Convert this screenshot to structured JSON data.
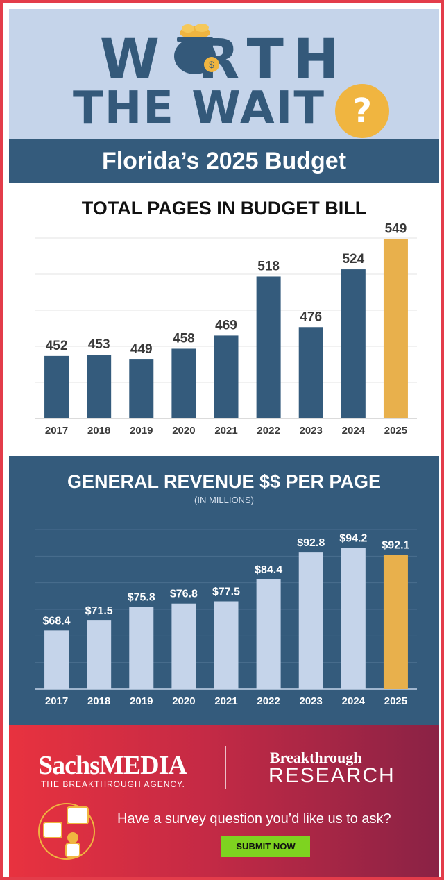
{
  "hero": {
    "line1": "W RTH",
    "line2": "THE WAIT",
    "question_mark": "?",
    "coin_symbol": "$"
  },
  "band": {
    "title": "Florida’s 2025 Budget"
  },
  "colors": {
    "navy": "#345b7c",
    "light_blue": "#c5d4ea",
    "highlight": "#e8b04c",
    "accent_red": "#e33c4a",
    "submit_green": "#7ed320"
  },
  "chart_data": [
    {
      "type": "bar",
      "title": "TOTAL PAGES IN BUDGET BILL",
      "categories": [
        "2017",
        "2018",
        "2019",
        "2020",
        "2021",
        "2022",
        "2023",
        "2024",
        "2025"
      ],
      "values": [
        452,
        453,
        449,
        458,
        469,
        518,
        476,
        524,
        549
      ],
      "labels": [
        "452",
        "453",
        "449",
        "458",
        "469",
        "518",
        "476",
        "524",
        "549"
      ],
      "highlight_category": "2025",
      "ylim": [
        400,
        550
      ],
      "grid": true
    },
    {
      "type": "bar",
      "title": "GENERAL REVENUE $$ PER PAGE",
      "subtitle": "(IN MILLIONS)",
      "categories": [
        "2017",
        "2018",
        "2019",
        "2020",
        "2021",
        "2022",
        "2023",
        "2024",
        "2025"
      ],
      "values": [
        68.4,
        71.5,
        75.8,
        76.8,
        77.5,
        84.4,
        92.8,
        94.2,
        92.1
      ],
      "labels": [
        "$68.4",
        "$71.5",
        "$75.8",
        "$76.8",
        "$77.5",
        "$84.4",
        "$92.8",
        "$94.2",
        "$92.1"
      ],
      "highlight_category": "2025",
      "ylim": [
        50,
        100
      ],
      "grid": true
    }
  ],
  "footer": {
    "brand1": "SachsMEDIA",
    "brand1_tagline": "THE BREAKTHROUGH AGENCY.",
    "brand2_line1": "Breakthrough",
    "brand2_line2": "RESEARCH",
    "cta_text": "Have a survey question you’d like us to ask?",
    "submit_label": "SUBMIT NOW",
    "survey_icon": "survey-person-icon"
  }
}
